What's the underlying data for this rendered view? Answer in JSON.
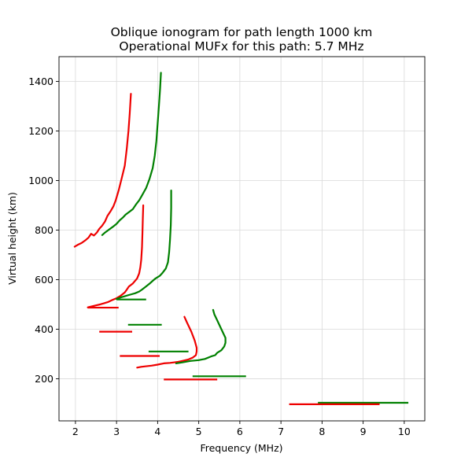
{
  "chart_data": {
    "type": "line",
    "title_lines": [
      "Oblique ionogram for path length 1000 km",
      "Operational MUFx for this path: 5.7 MHz"
    ],
    "xlabel": "Frequency (MHz)",
    "ylabel": "Virtual height (km)",
    "xlim": [
      1.6,
      10.5
    ],
    "ylim": [
      30,
      1500
    ],
    "xticks": [
      2,
      3,
      4,
      5,
      6,
      7,
      8,
      9,
      10
    ],
    "yticks": [
      200,
      400,
      600,
      800,
      1000,
      1200,
      1400
    ],
    "grid": true,
    "colors": {
      "red": "#ee0000",
      "green": "#008000"
    },
    "curves": [
      {
        "color": "red",
        "points": [
          [
            1.98,
            733
          ],
          [
            2.05,
            740
          ],
          [
            2.15,
            748
          ],
          [
            2.25,
            760
          ],
          [
            2.32,
            770
          ],
          [
            2.38,
            785
          ],
          [
            2.45,
            778
          ],
          [
            2.52,
            790
          ],
          [
            2.58,
            805
          ],
          [
            2.65,
            818
          ],
          [
            2.72,
            835
          ],
          [
            2.78,
            858
          ],
          [
            2.85,
            875
          ],
          [
            2.92,
            895
          ],
          [
            2.98,
            920
          ],
          [
            3.05,
            960
          ],
          [
            3.12,
            1005
          ],
          [
            3.2,
            1060
          ],
          [
            3.25,
            1130
          ],
          [
            3.29,
            1200
          ],
          [
            3.32,
            1270
          ],
          [
            3.35,
            1350
          ]
        ]
      },
      {
        "color": "green",
        "points": [
          [
            2.65,
            780
          ],
          [
            2.72,
            790
          ],
          [
            2.8,
            800
          ],
          [
            2.9,
            812
          ],
          [
            3.0,
            825
          ],
          [
            3.08,
            840
          ],
          [
            3.15,
            850
          ],
          [
            3.22,
            862
          ],
          [
            3.3,
            872
          ],
          [
            3.4,
            885
          ],
          [
            3.48,
            905
          ],
          [
            3.55,
            920
          ],
          [
            3.62,
            940
          ],
          [
            3.72,
            970
          ],
          [
            3.8,
            1005
          ],
          [
            3.88,
            1050
          ],
          [
            3.93,
            1100
          ],
          [
            3.97,
            1160
          ],
          [
            4.0,
            1230
          ],
          [
            4.03,
            1300
          ],
          [
            4.06,
            1370
          ],
          [
            4.08,
            1435
          ]
        ]
      },
      {
        "color": "red",
        "points": [
          [
            2.3,
            488
          ],
          [
            2.4,
            492
          ],
          [
            2.5,
            496
          ],
          [
            2.6,
            500
          ],
          [
            2.7,
            505
          ],
          [
            2.8,
            510
          ],
          [
            2.9,
            518
          ],
          [
            3.0,
            525
          ],
          [
            3.1,
            535
          ],
          [
            3.2,
            548
          ],
          [
            3.25,
            560
          ],
          [
            3.3,
            572
          ],
          [
            3.4,
            585
          ],
          [
            3.5,
            605
          ],
          [
            3.55,
            625
          ],
          [
            3.58,
            650
          ],
          [
            3.6,
            680
          ],
          [
            3.62,
            730
          ],
          [
            3.63,
            790
          ],
          [
            3.64,
            850
          ],
          [
            3.65,
            900
          ]
        ]
      },
      {
        "color": "green",
        "points": [
          [
            3.0,
            522
          ],
          [
            3.1,
            528
          ],
          [
            3.2,
            533
          ],
          [
            3.3,
            538
          ],
          [
            3.45,
            545
          ],
          [
            3.55,
            552
          ],
          [
            3.62,
            560
          ],
          [
            3.7,
            570
          ],
          [
            3.8,
            583
          ],
          [
            3.88,
            595
          ],
          [
            3.95,
            605
          ],
          [
            4.05,
            615
          ],
          [
            4.12,
            628
          ],
          [
            4.2,
            645
          ],
          [
            4.25,
            670
          ],
          [
            4.28,
            710
          ],
          [
            4.3,
            760
          ],
          [
            4.32,
            820
          ],
          [
            4.33,
            890
          ],
          [
            4.33,
            960
          ]
        ]
      },
      {
        "color": "red",
        "points": [
          [
            3.5,
            245
          ],
          [
            3.6,
            248
          ],
          [
            3.7,
            250
          ],
          [
            3.85,
            253
          ],
          [
            4.0,
            257
          ],
          [
            4.15,
            262
          ],
          [
            4.3,
            264
          ],
          [
            4.5,
            268
          ],
          [
            4.6,
            272
          ],
          [
            4.75,
            278
          ],
          [
            4.85,
            285
          ],
          [
            4.93,
            295
          ],
          [
            4.95,
            310
          ],
          [
            4.95,
            325
          ],
          [
            4.9,
            355
          ],
          [
            4.82,
            390
          ],
          [
            4.72,
            425
          ],
          [
            4.65,
            450
          ]
        ]
      },
      {
        "color": "green",
        "points": [
          [
            4.45,
            262
          ],
          [
            4.6,
            266
          ],
          [
            4.8,
            272
          ],
          [
            5.0,
            275
          ],
          [
            5.15,
            280
          ],
          [
            5.3,
            290
          ],
          [
            5.4,
            295
          ],
          [
            5.45,
            305
          ],
          [
            5.55,
            315
          ],
          [
            5.62,
            330
          ],
          [
            5.65,
            345
          ],
          [
            5.65,
            365
          ],
          [
            5.55,
            400
          ],
          [
            5.45,
            435
          ],
          [
            5.38,
            460
          ],
          [
            5.35,
            478
          ]
        ]
      }
    ],
    "segments": [
      {
        "color": "green",
        "x": [
          3.0,
          3.72
        ],
        "y": 520
      },
      {
        "color": "red",
        "x": [
          2.3,
          3.05
        ],
        "y": 487
      },
      {
        "color": "green",
        "x": [
          3.28,
          4.1
        ],
        "y": 418
      },
      {
        "color": "red",
        "x": [
          2.58,
          3.38
        ],
        "y": 390
      },
      {
        "color": "green",
        "x": [
          3.78,
          4.75
        ],
        "y": 310
      },
      {
        "color": "red",
        "x": [
          3.08,
          4.05
        ],
        "y": 292
      },
      {
        "color": "green",
        "x": [
          4.85,
          6.15
        ],
        "y": 210
      },
      {
        "color": "red",
        "x": [
          4.15,
          5.45
        ],
        "y": 197
      },
      {
        "color": "green",
        "x": [
          7.9,
          10.1
        ],
        "y": 103
      },
      {
        "color": "red",
        "x": [
          7.2,
          9.4
        ],
        "y": 97
      }
    ]
  }
}
